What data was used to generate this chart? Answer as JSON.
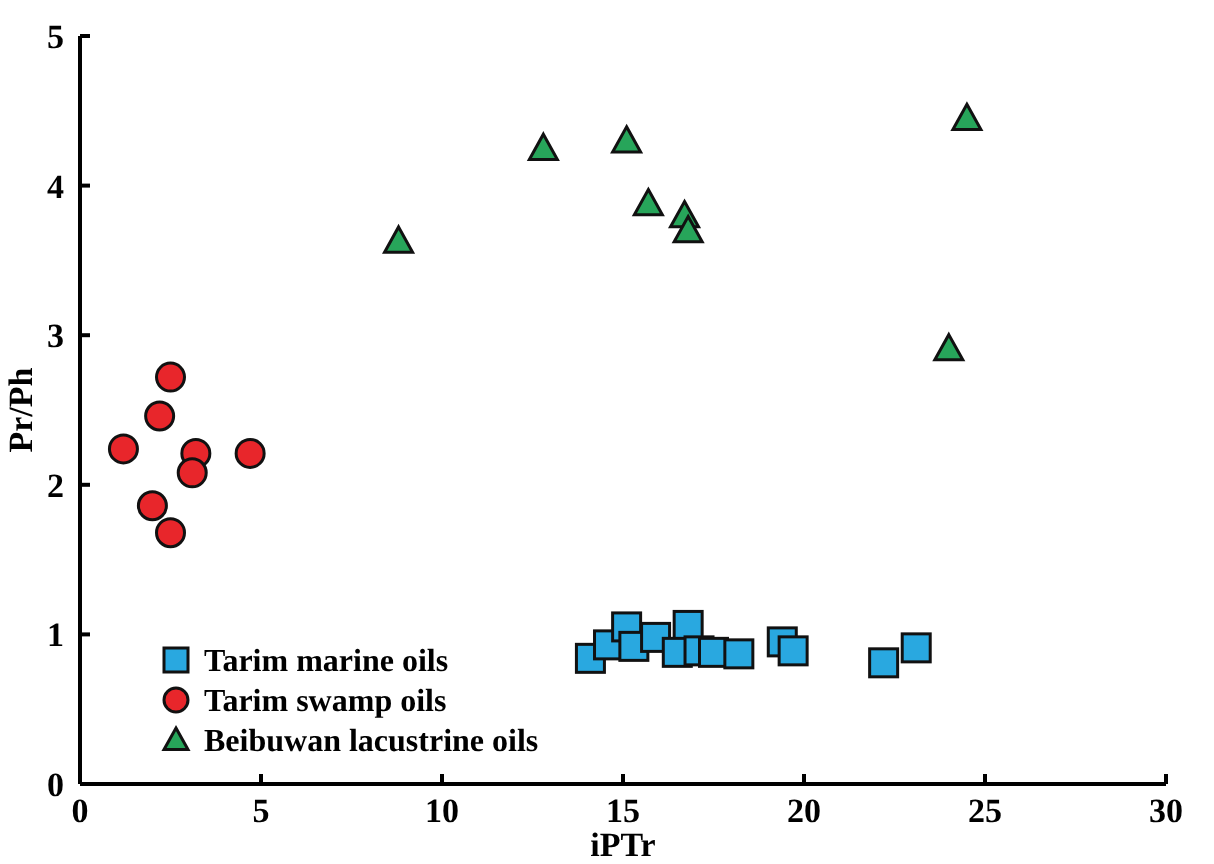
{
  "chart_data": {
    "type": "scatter",
    "xlabel": "iPTr",
    "ylabel": "Pr/Ph",
    "xlim": [
      0,
      30
    ],
    "ylim": [
      0,
      5
    ],
    "xticks": [
      0,
      5,
      10,
      15,
      20,
      25,
      30
    ],
    "yticks": [
      0,
      1,
      2,
      3,
      4,
      5
    ],
    "grid": false,
    "legend": "bottom left",
    "series": [
      {
        "name": "Tarim marine oils",
        "color": "#29a8e0",
        "marker": "square",
        "x": [
          14.1,
          14.6,
          15.1,
          15.3,
          15.9,
          16.8,
          16.5,
          17.1,
          17.5,
          18.2,
          19.4,
          19.7,
          22.2,
          23.1
        ],
        "values": [
          0.84,
          0.93,
          1.05,
          0.92,
          0.98,
          1.06,
          0.88,
          0.89,
          0.88,
          0.87,
          0.95,
          0.89,
          0.81,
          0.91
        ]
      },
      {
        "name": "Tarim swamp oils",
        "color": "#e8262b",
        "marker": "circle",
        "x": [
          1.2,
          2.5,
          2.2,
          3.2,
          3.1,
          4.7,
          2.0,
          2.5
        ],
        "values": [
          2.24,
          2.72,
          2.46,
          2.21,
          2.08,
          2.21,
          1.86,
          1.68
        ]
      },
      {
        "name": "Beibuwan lacustrine oils",
        "color": "#27a55a",
        "marker": "triangle",
        "x": [
          8.8,
          12.8,
          15.1,
          15.7,
          16.7,
          16.8,
          24.5,
          24.0
        ],
        "values": [
          3.63,
          4.25,
          4.3,
          3.88,
          3.8,
          3.7,
          4.45,
          2.91
        ]
      }
    ]
  }
}
